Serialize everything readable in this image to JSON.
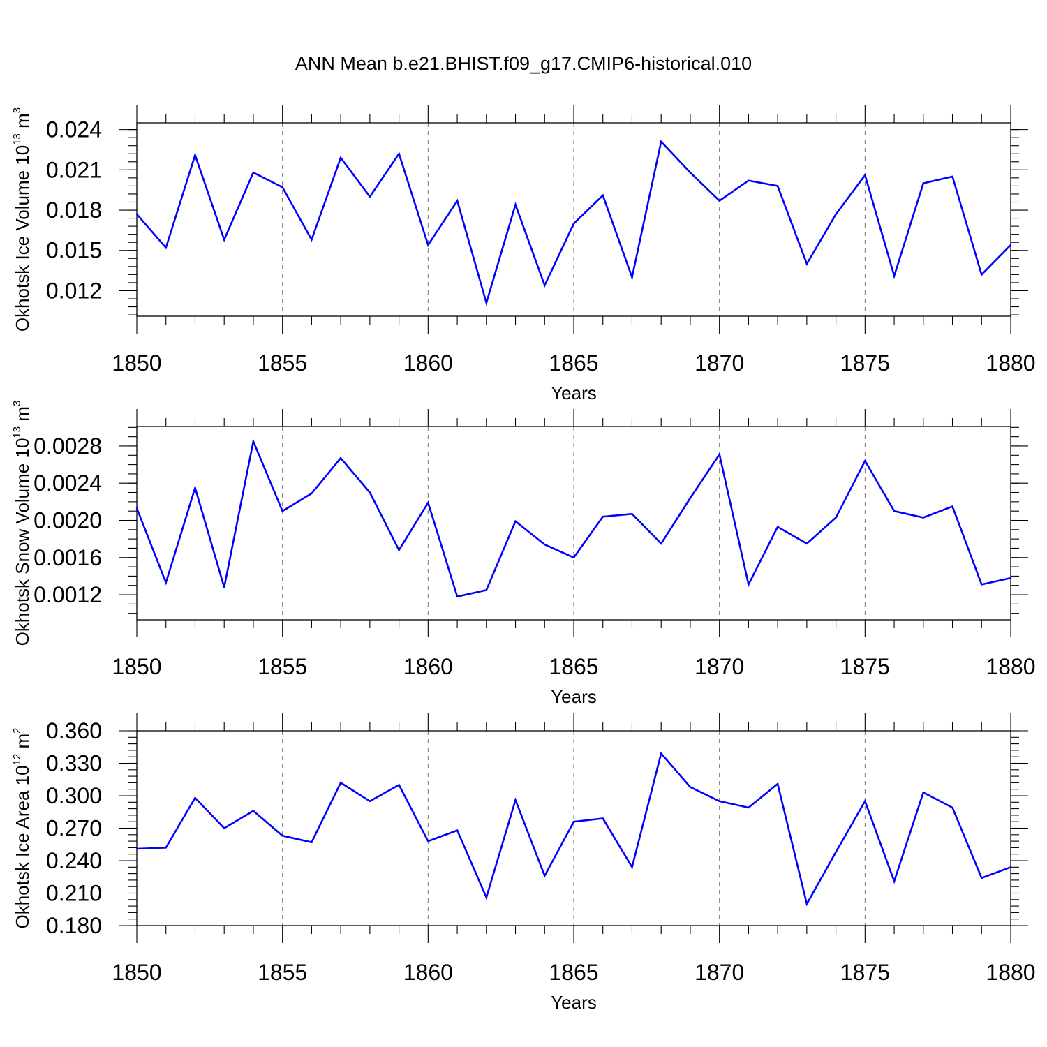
{
  "title": "ANN Mean b.e21.BHIST.f09_g17.CMIP6-historical.010",
  "colors": {
    "series": "#0000ff",
    "axes": "#000000",
    "grid": "#777777"
  },
  "chart_data": [
    {
      "type": "line",
      "name": "ice-volume",
      "xlabel": "Years",
      "ylabel_main": "Okhotsk Ice Volume 10",
      "ylabel_exp": "13",
      "ylabel_unit": " m",
      "ylabel_unit_exp": "3",
      "xlim": [
        1850,
        1880
      ],
      "ylim": [
        0.0101,
        0.0245
      ],
      "xticks": [
        1850,
        1855,
        1860,
        1865,
        1870,
        1875,
        1880
      ],
      "xtick_labels": [
        "1850",
        "1855",
        "1860",
        "1865",
        "1870",
        "1875",
        "1880"
      ],
      "yticks": [
        0.012,
        0.015,
        0.018,
        0.021,
        0.024
      ],
      "ytick_labels": [
        "0.012",
        "0.015",
        "0.018",
        "0.021",
        "0.024"
      ],
      "yminor_step": 0.0006,
      "x": [
        1850,
        1851,
        1852,
        1853,
        1854,
        1855,
        1856,
        1857,
        1858,
        1859,
        1860,
        1861,
        1862,
        1863,
        1864,
        1865,
        1866,
        1867,
        1868,
        1869,
        1870,
        1871,
        1872,
        1873,
        1874,
        1875,
        1876,
        1877,
        1878,
        1879,
        1880
      ],
      "values": [
        0.0177,
        0.0152,
        0.0221,
        0.0158,
        0.0208,
        0.0197,
        0.0158,
        0.0219,
        0.019,
        0.0222,
        0.0154,
        0.0187,
        0.0111,
        0.0184,
        0.0124,
        0.017,
        0.0191,
        0.013,
        0.0231,
        0.0208,
        0.0187,
        0.0202,
        0.0198,
        0.014,
        0.0177,
        0.0206,
        0.0131,
        0.02,
        0.0205,
        0.0132,
        0.0154
      ]
    },
    {
      "type": "line",
      "name": "snow-volume",
      "xlabel": "Years",
      "ylabel_main": "Okhotsk Snow Volume 10",
      "ylabel_exp": "13",
      "ylabel_unit": " m",
      "ylabel_unit_exp": "3",
      "xlim": [
        1850,
        1880
      ],
      "ylim": [
        0.00093,
        0.00301
      ],
      "xticks": [
        1850,
        1855,
        1860,
        1865,
        1870,
        1875,
        1880
      ],
      "xtick_labels": [
        "1850",
        "1855",
        "1860",
        "1865",
        "1870",
        "1875",
        "1880"
      ],
      "yticks": [
        0.0012,
        0.0016,
        0.002,
        0.0024,
        0.0028
      ],
      "ytick_labels": [
        "0.0012",
        "0.0016",
        "0.0020",
        "0.0024",
        "0.0028"
      ],
      "yminor_step": 0.0001,
      "x": [
        1850,
        1851,
        1852,
        1853,
        1854,
        1855,
        1856,
        1857,
        1858,
        1859,
        1860,
        1861,
        1862,
        1863,
        1864,
        1865,
        1866,
        1867,
        1868,
        1869,
        1870,
        1871,
        1872,
        1873,
        1874,
        1875,
        1876,
        1877,
        1878,
        1879,
        1880
      ],
      "values": [
        0.00213,
        0.00133,
        0.00235,
        0.00128,
        0.00285,
        0.0021,
        0.00229,
        0.00267,
        0.0023,
        0.00168,
        0.00219,
        0.00118,
        0.00125,
        0.00199,
        0.00174,
        0.0016,
        0.00204,
        0.00207,
        0.00175,
        0.00224,
        0.00271,
        0.00131,
        0.00193,
        0.00175,
        0.00203,
        0.00264,
        0.0021,
        0.00203,
        0.00215,
        0.00131,
        0.00138
      ]
    },
    {
      "type": "line",
      "name": "ice-area",
      "xlabel": "Years",
      "ylabel_main": "Okhotsk Ice Area 10",
      "ylabel_exp": "12",
      "ylabel_unit": " m",
      "ylabel_unit_exp": "2",
      "xlim": [
        1850,
        1880
      ],
      "ylim": [
        0.18,
        0.36
      ],
      "xticks": [
        1850,
        1855,
        1860,
        1865,
        1870,
        1875,
        1880
      ],
      "xtick_labels": [
        "1850",
        "1855",
        "1860",
        "1865",
        "1870",
        "1875",
        "1880"
      ],
      "yticks": [
        0.18,
        0.21,
        0.24,
        0.27,
        0.3,
        0.33,
        0.36
      ],
      "ytick_labels": [
        "0.180",
        "0.210",
        "0.240",
        "0.270",
        "0.300",
        "0.330",
        "0.360"
      ],
      "yminor_step": 0.006,
      "x": [
        1850,
        1851,
        1852,
        1853,
        1854,
        1855,
        1856,
        1857,
        1858,
        1859,
        1860,
        1861,
        1862,
        1863,
        1864,
        1865,
        1866,
        1867,
        1868,
        1869,
        1870,
        1871,
        1872,
        1873,
        1874,
        1875,
        1876,
        1877,
        1878,
        1879,
        1880
      ],
      "values": [
        0.251,
        0.252,
        0.298,
        0.27,
        0.286,
        0.263,
        0.257,
        0.312,
        0.295,
        0.31,
        0.258,
        0.268,
        0.206,
        0.296,
        0.226,
        0.276,
        0.279,
        0.234,
        0.339,
        0.308,
        0.295,
        0.289,
        0.311,
        0.2,
        0.248,
        0.295,
        0.221,
        0.303,
        0.289,
        0.224,
        0.234
      ]
    }
  ]
}
